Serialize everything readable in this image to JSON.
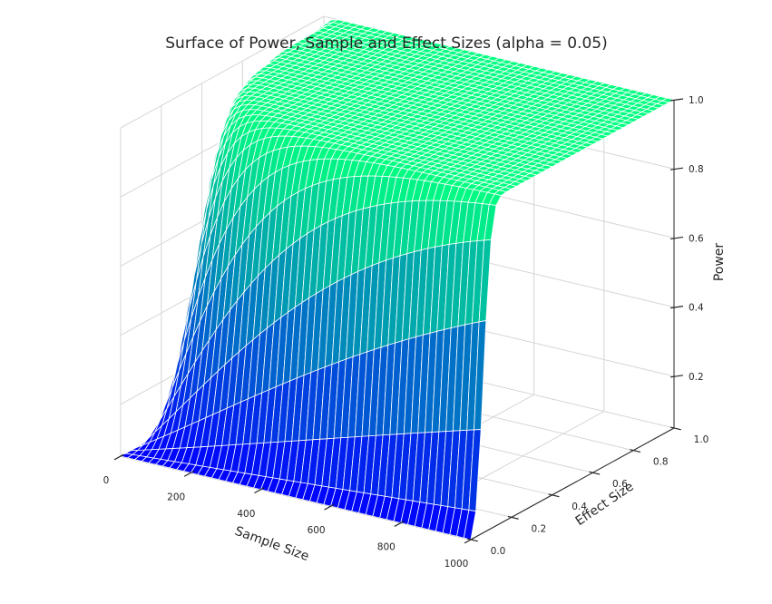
{
  "chart_data": {
    "type": "surface",
    "title": "Surface of Power, Sample and Effect Sizes (alpha = 0.05)",
    "xlabel": "Sample Size",
    "ylabel": "Effect Size",
    "zlabel": "Power",
    "alpha": 0.05,
    "xlim": [
      0,
      1000
    ],
    "ylim": [
      0.0,
      1.0
    ],
    "zlim": [
      0.05,
      1.0
    ],
    "xticks": [
      0,
      200,
      400,
      600,
      800,
      1000
    ],
    "yticks": [
      0.0,
      0.2,
      0.4,
      0.6,
      0.8,
      1.0
    ],
    "zticks": [
      0.2,
      0.4,
      0.6,
      0.8,
      1.0
    ],
    "xtick_labels": [
      "0",
      "200",
      "400",
      "600",
      "800",
      "1000"
    ],
    "ytick_labels": [
      "0.0",
      "0.2",
      "0.4",
      "0.6",
      "0.8",
      "1.0"
    ],
    "ztick_labels": [
      "0.2",
      "0.4",
      "0.6",
      "0.8",
      "1.0"
    ],
    "grid": true,
    "colormap": [
      "#0000ff",
      "#00ff80"
    ],
    "grid_x": [
      0,
      100,
      200,
      300,
      400,
      500,
      600,
      700,
      800,
      900,
      1000
    ],
    "grid_y": [
      0.0,
      0.1,
      0.2,
      0.3,
      0.4,
      0.5,
      0.6,
      0.7,
      0.8,
      0.9,
      1.0
    ],
    "power_samples": [
      [
        0.05,
        0.05,
        0.05,
        0.05,
        0.05,
        0.05,
        0.05,
        0.05,
        0.05,
        0.05,
        0.05
      ],
      [
        0.05,
        0.17,
        0.29,
        0.4,
        0.51,
        0.61,
        0.69,
        0.76,
        0.81,
        0.85,
        0.89
      ],
      [
        0.05,
        0.52,
        0.81,
        0.94,
        0.98,
        0.99,
        1.0,
        1.0,
        1.0,
        1.0,
        1.0
      ],
      [
        0.05,
        0.85,
        0.99,
        1.0,
        1.0,
        1.0,
        1.0,
        1.0,
        1.0,
        1.0,
        1.0
      ],
      [
        0.05,
        0.98,
        1.0,
        1.0,
        1.0,
        1.0,
        1.0,
        1.0,
        1.0,
        1.0,
        1.0
      ],
      [
        0.05,
        1.0,
        1.0,
        1.0,
        1.0,
        1.0,
        1.0,
        1.0,
        1.0,
        1.0,
        1.0
      ],
      [
        0.05,
        1.0,
        1.0,
        1.0,
        1.0,
        1.0,
        1.0,
        1.0,
        1.0,
        1.0,
        1.0
      ],
      [
        0.05,
        1.0,
        1.0,
        1.0,
        1.0,
        1.0,
        1.0,
        1.0,
        1.0,
        1.0,
        1.0
      ],
      [
        0.05,
        1.0,
        1.0,
        1.0,
        1.0,
        1.0,
        1.0,
        1.0,
        1.0,
        1.0,
        1.0
      ],
      [
        0.05,
        1.0,
        1.0,
        1.0,
        1.0,
        1.0,
        1.0,
        1.0,
        1.0,
        1.0,
        1.0
      ],
      [
        0.05,
        1.0,
        1.0,
        1.0,
        1.0,
        1.0,
        1.0,
        1.0,
        1.0,
        1.0,
        1.0
      ]
    ]
  }
}
